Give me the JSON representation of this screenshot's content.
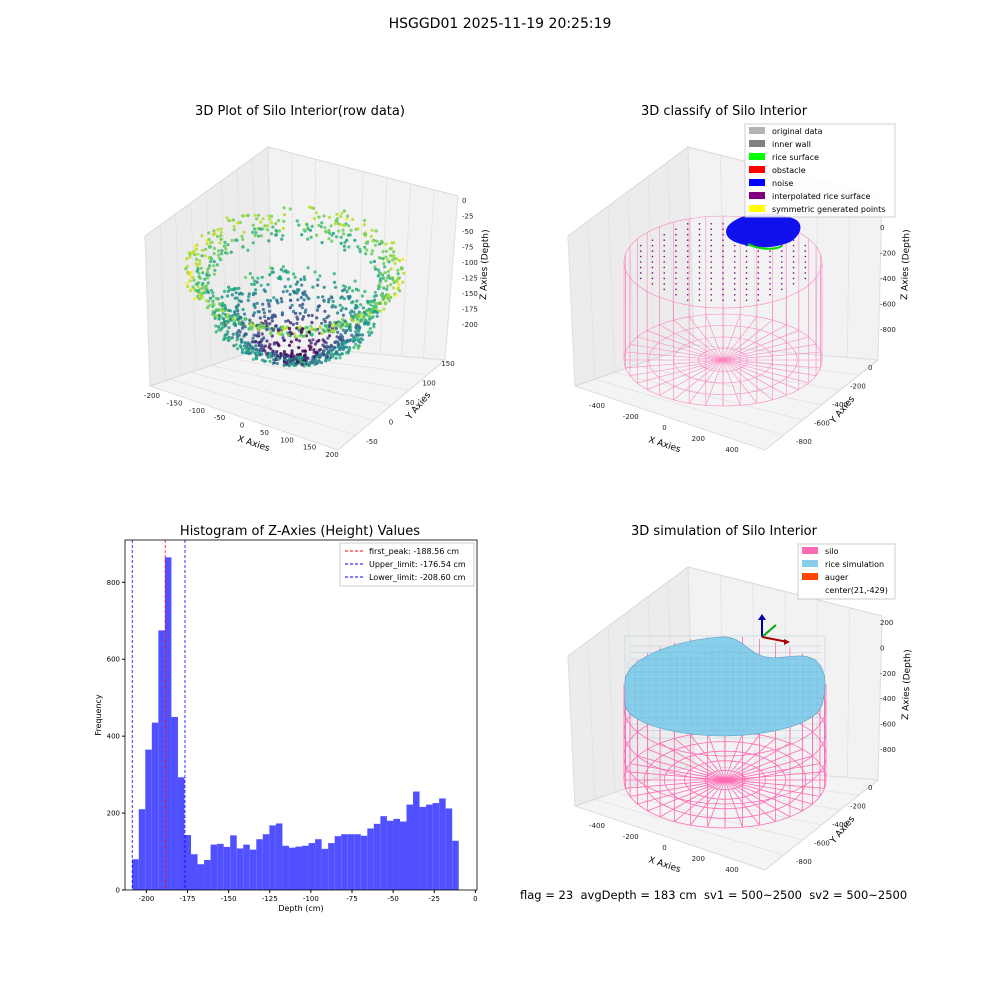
{
  "figure": {
    "suptitle": "HSGGD01 2025-11-19 20:25:19",
    "status_line": "flag = 23  avgDepth = 183 cm  sv1 = 500~2500  sv2 = 500~2500"
  },
  "colors": {
    "histogram_bar": "#5050ff",
    "first_peak_line": "#ff0000",
    "limit_lines": "#0000ff",
    "silo": "#ff69b4",
    "rice_simulation": "#87ceeb",
    "auger": "#ff4500"
  },
  "chart_data": [
    {
      "type": "scatter3d",
      "title": "3D Plot of Silo Interior(row data)",
      "xlabel": "X Axies",
      "ylabel": "Y Axies",
      "zlabel": "Z Axies (Depth)",
      "x_ticks": [
        "-200",
        "-150",
        "-100",
        "-50",
        "0",
        "50",
        "100",
        "150",
        "200"
      ],
      "y_ticks": [
        "-50",
        "0",
        "50",
        "100",
        "150"
      ],
      "z_ticks": [
        "0",
        "-25",
        "-50",
        "-75",
        "-100",
        "-125",
        "-150",
        "-175",
        "-200"
      ],
      "colormap": "viridis"
    },
    {
      "type": "scatter3d",
      "title": "3D classify of Silo Interior",
      "xlabel": "X Axies",
      "ylabel": "Y Axies",
      "zlabel": "Z Axies (Depth)",
      "x_ticks": [
        "-400",
        "-200",
        "0",
        "200",
        "400"
      ],
      "y_ticks": [
        "-800",
        "-600",
        "-400",
        "-200",
        "0"
      ],
      "z_ticks": [
        "0",
        "-200",
        "-400",
        "-600",
        "-800"
      ],
      "legend_placement": "top-right",
      "legend": [
        {
          "label": "original data",
          "color": "#b4b4b4"
        },
        {
          "label": "inner wall",
          "color": "#808080"
        },
        {
          "label": "rice surface",
          "color": "#00ff00"
        },
        {
          "label": "obstacle",
          "color": "#ff0000"
        },
        {
          "label": "noise",
          "color": "#0000ff"
        },
        {
          "label": "interpolated rice surface",
          "color": "#800080"
        },
        {
          "label": "symmetric generated points",
          "color": "#ffff00"
        }
      ]
    },
    {
      "type": "bar",
      "title": "Histogram of Z-Axies (Height) Values",
      "xlabel": "Depth (cm)",
      "ylabel": "Frequency",
      "xlim": [
        -213,
        1
      ],
      "ylim": [
        0,
        910
      ],
      "x_ticks": [
        -200,
        -175,
        -150,
        -125,
        -100,
        -75,
        -50,
        -25,
        0
      ],
      "y_ticks": [
        0,
        200,
        400,
        600,
        800
      ],
      "bin_width": 3.97,
      "bin_start": -208.6,
      "values": [
        80,
        210,
        365,
        435,
        675,
        865,
        450,
        293,
        143,
        93,
        67,
        78,
        118,
        120,
        112,
        142,
        108,
        118,
        105,
        132,
        145,
        168,
        173,
        115,
        110,
        113,
        115,
        122,
        132,
        107,
        122,
        140,
        145,
        145,
        145,
        141,
        160,
        172,
        192,
        180,
        185,
        178,
        222,
        256,
        216,
        222,
        226,
        238,
        212,
        128
      ],
      "vlines": [
        {
          "x": -188.56,
          "label": "first_peak: -188.56 cm",
          "color": "#ff0000"
        },
        {
          "x": -176.54,
          "label": "Upper_limit: -176.54 cm",
          "color": "#0000ff"
        },
        {
          "x": -208.6,
          "label": "Lower_limit: -208.60 cm",
          "color": "#0000ff"
        }
      ],
      "legend_placement": "top-right",
      "grid": false
    },
    {
      "type": "surface3d",
      "title": "3D simulation of Silo Interior",
      "xlabel": "X Axies",
      "ylabel": "Y Axies",
      "zlabel": "Z Axies (Depth)",
      "x_ticks": [
        "-400",
        "-200",
        "0",
        "200",
        "400"
      ],
      "y_ticks": [
        "-800",
        "-600",
        "-400",
        "-200",
        "0"
      ],
      "z_ticks": [
        "200",
        "0",
        "-200",
        "-400",
        "-600",
        "-800"
      ],
      "legend_placement": "top-right",
      "legend": [
        {
          "label": "silo",
          "color": "#ff69b4"
        },
        {
          "label": "rice simulation",
          "color": "#87ceeb"
        },
        {
          "label": "auger",
          "color": "#ff4500"
        },
        {
          "label": "center(21,-429)",
          "color": ""
        }
      ]
    }
  ]
}
